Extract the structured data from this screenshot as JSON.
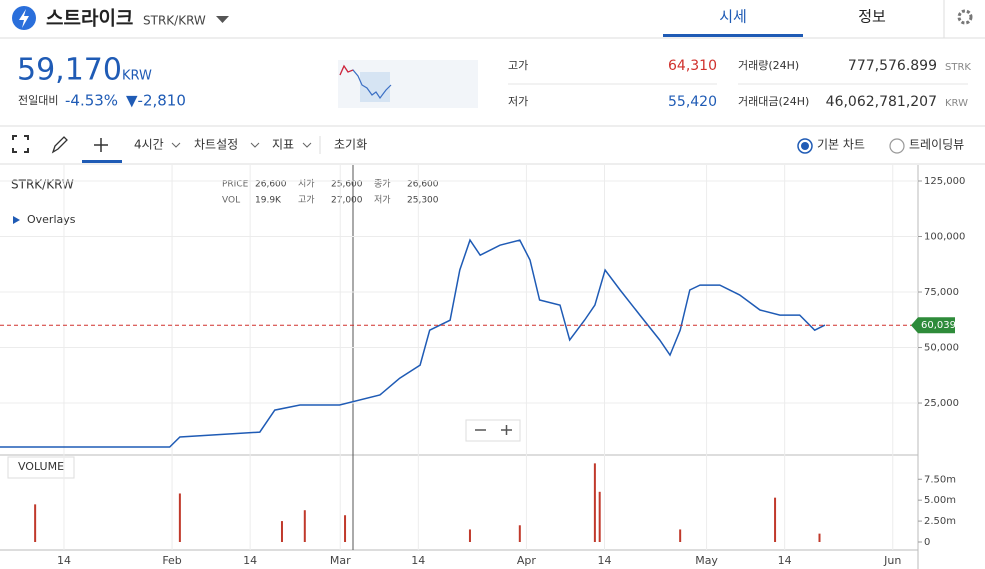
{
  "header": {
    "name": "스트라이크",
    "symbol": "STRK/KRW",
    "tabs": [
      "시세",
      "정보"
    ]
  },
  "summary": {
    "price": "59,170",
    "unit": "KRW",
    "change_label": "전일대비",
    "change_rate": "-4.53%",
    "change_amount": "▼-2,810"
  },
  "stats": [
    {
      "label": "고가",
      "value": "64,310"
    },
    {
      "label": "저가",
      "value": "55,420"
    },
    {
      "label": "거래량(24H)",
      "value": "777,576.899",
      "unit": "STRK"
    },
    {
      "label": "거래대금(24H)",
      "value": "46,062,781,207",
      "unit": "KRW"
    }
  ],
  "toolbar": {
    "menus": [
      "4시간",
      "차트설정",
      "지표"
    ],
    "reset": "초기화",
    "views": [
      "기본 차트",
      "트레이딩뷰"
    ]
  },
  "chart": {
    "type": "line",
    "symbol": "STRK/KRW",
    "overlays": "Overlays",
    "info": [
      {
        "label": "PRICE",
        "value": "26,600"
      },
      {
        "label": "시가",
        "value": "25,600"
      },
      {
        "label": "종가",
        "value": "26,600"
      },
      {
        "label": "VOL",
        "value": "19.9K"
      },
      {
        "label": "고가",
        "value": "27,000"
      },
      {
        "label": "저가",
        "value": "25,300"
      }
    ],
    "x": [
      -10.7,
      17.6,
      19.3,
      32.6,
      35.1,
      39.3,
      45.9,
      52.6,
      55.9,
      59.3,
      60.9,
      64.3,
      65.9,
      67.6,
      69.3,
      72.6,
      75.9,
      77.6,
      79.2,
      82.6,
      84.2,
      86.7,
      88.4,
      90.1,
      92.6,
      95.9,
      99.2,
      100.9,
      102.6,
      104.2,
      105.9,
      109.2,
      112.5,
      115.9,
      119.2,
      122.5,
      125.0,
      126.7
    ],
    "values": [
      5200,
      5200,
      9700,
      11900,
      21800,
      24100,
      24100,
      28600,
      36200,
      42100,
      57800,
      62300,
      84900,
      98400,
      91600,
      96100,
      98400,
      89400,
      71400,
      69100,
      53400,
      62400,
      69100,
      84900,
      75900,
      64600,
      53400,
      46600,
      57800,
      75900,
      78100,
      78100,
      73700,
      66900,
      64600,
      64600,
      57800,
      60100
    ],
    "color": "#1f5bb5",
    "xlim": [
      -10.65,
      142.2
    ],
    "xticks": [
      {
        "value": 0,
        "label": "14"
      },
      {
        "value": 18,
        "label": "Feb"
      },
      {
        "value": 31,
        "label": "14"
      },
      {
        "value": 46,
        "label": "Mar"
      },
      {
        "value": 59,
        "label": "14"
      },
      {
        "value": 77,
        "label": "Apr"
      },
      {
        "value": 90,
        "label": "14"
      },
      {
        "value": 107,
        "label": "May"
      },
      {
        "value": 120,
        "label": "14"
      },
      {
        "value": 138,
        "label": "Jun"
      }
    ],
    "ylim": [
      1600,
      132200
    ],
    "yticks": [
      {
        "value": 25000,
        "label": "25,000"
      },
      {
        "value": 50000,
        "label": "50,000"
      },
      {
        "value": 75000,
        "label": "75,000"
      },
      {
        "value": 100000,
        "label": "100,000"
      },
      {
        "value": 125000,
        "label": "125,000"
      }
    ],
    "current": {
      "value": 60039,
      "label": "60,039"
    },
    "volume": {
      "title": "VOLUME",
      "x": [
        -4.8,
        19.3,
        36.3,
        40.1,
        46.8,
        67.6,
        75.9,
        88.4,
        89.2,
        102.6,
        118.4,
        125.8
      ],
      "values": [
        4.5,
        5.8,
        2.5,
        3.8,
        3.2,
        1.5,
        2,
        9.4,
        6,
        1.5,
        5.3,
        1
      ],
      "color": "#c0392b",
      "ylim": [
        0,
        10.4
      ],
      "yticks": [
        0,
        {
          "value": 2.5,
          "label": "2.50m"
        },
        {
          "value": 5,
          "label": "5.00m"
        },
        {
          "value": 7.5,
          "label": "7.50m"
        }
      ]
    }
  }
}
